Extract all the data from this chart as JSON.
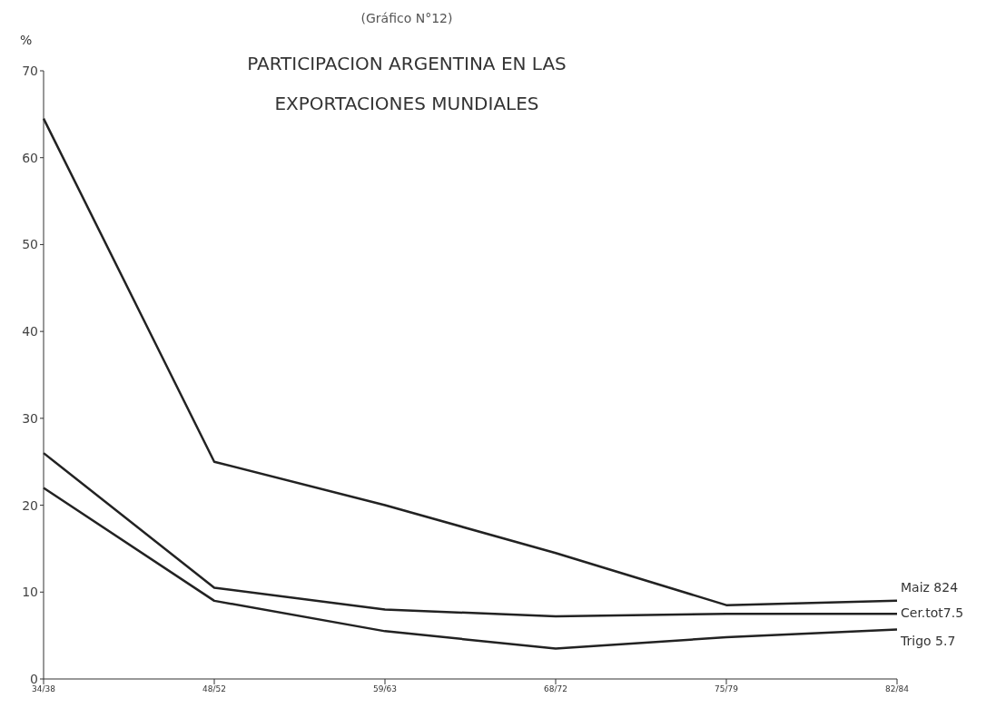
{
  "chart_data": {
    "type": "line",
    "title": "PARTICIPACION ARGENTINA EN LAS\nEXPORTACIONES MUNDIALES",
    "subtitle": "(Gráfico N°12)",
    "ylabel": "%",
    "categories": [
      "34/38",
      "48/52",
      "59/63",
      "68/72",
      "75/79",
      "82/84"
    ],
    "series": [
      {
        "name": "Maiz 824",
        "color": "#222222",
        "values": [
          64.5,
          25,
          20,
          14.5,
          8.5,
          9
        ]
      },
      {
        "name": "Cer.tot7.5",
        "color": "#222222",
        "values": [
          26,
          10.5,
          8,
          7.2,
          7.5,
          7.5
        ]
      },
      {
        "name": "Trigo 5.7",
        "color": "#222222",
        "values": [
          22,
          9,
          5.5,
          3.5,
          4.8,
          5.7
        ]
      }
    ],
    "ylim": [
      0,
      70
    ],
    "yticks": [
      0,
      10,
      20,
      30,
      40,
      50,
      60,
      70
    ],
    "grid": false,
    "legend": false,
    "marker": "none",
    "line_style": "solid"
  }
}
